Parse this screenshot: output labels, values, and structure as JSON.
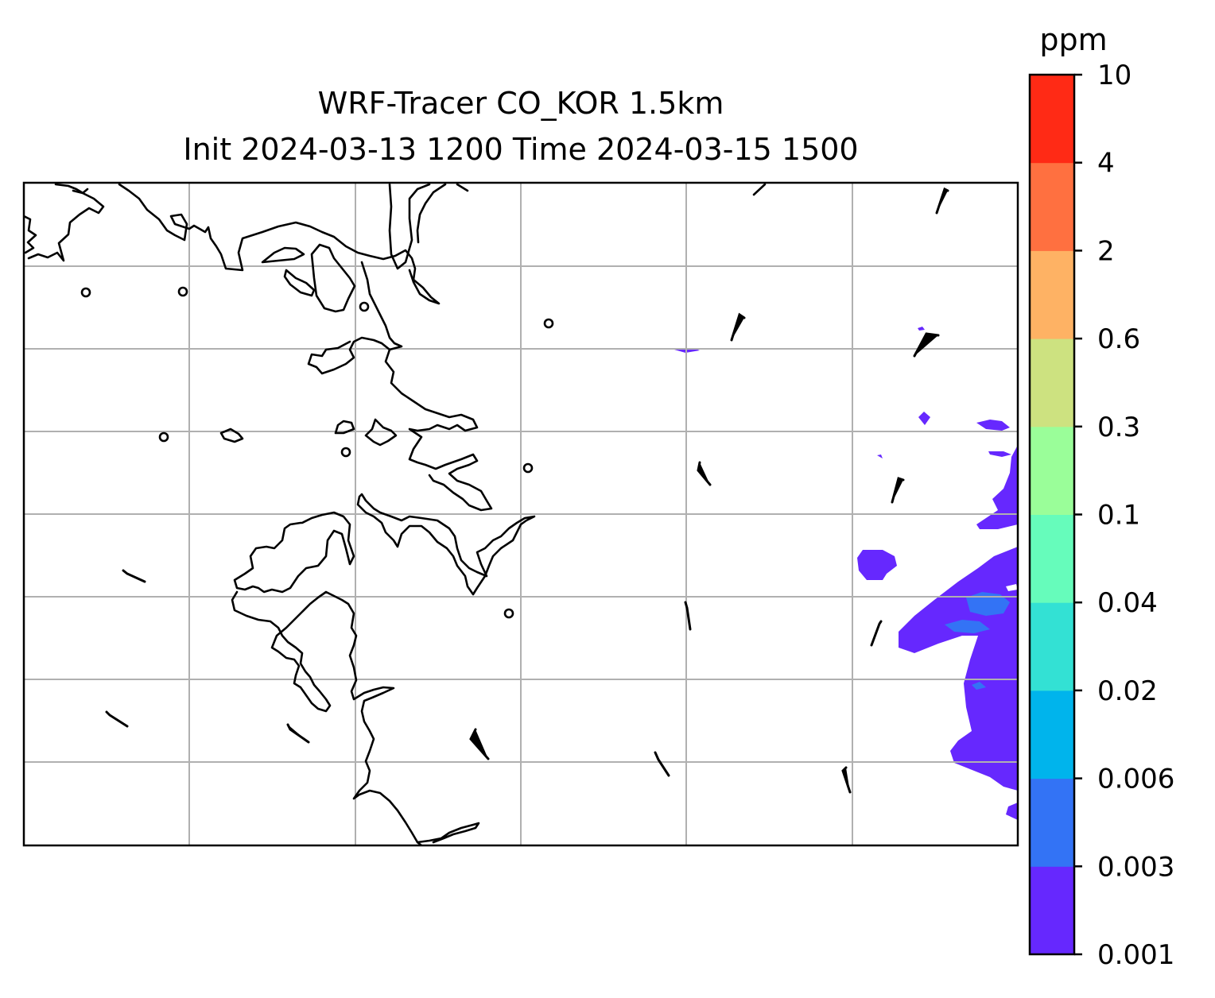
{
  "title": {
    "line1": "WRF-Tracer CO_KOR 1.5km",
    "line2": "Init 2024-03-13 1200 Time 2024-03-15 1500"
  },
  "colorbar": {
    "unit_label": "ppm",
    "ticks": [
      "0.001",
      "0.003",
      "0.006",
      "0.02",
      "0.04",
      "0.1",
      "0.3",
      "0.6",
      "2",
      "4",
      "10"
    ],
    "colors": [
      "#6628fe",
      "#3373f5",
      "#00b4ec",
      "#33e1d4",
      "#66fcbb",
      "#9afe99",
      "#cde280",
      "#feb264",
      "#ff7040",
      "#ff2a15"
    ]
  },
  "map": {
    "gridlines": true,
    "coastline_color": "#000000",
    "grid_color": "#b0b0b0",
    "dominant_field_level": "0.001–0.003",
    "plume_location": "east edge"
  }
}
